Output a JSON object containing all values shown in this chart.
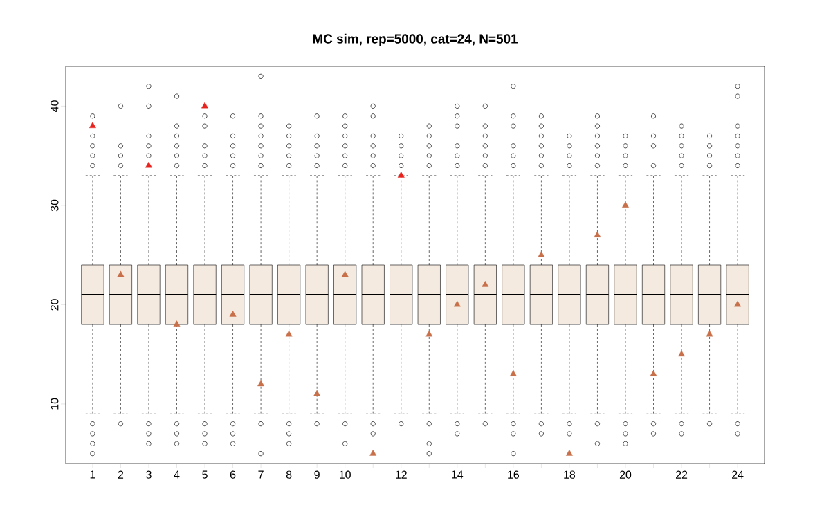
{
  "chart_data": {
    "type": "box",
    "title": "MC sim, rep=5000, cat=24, N=501",
    "categories": [
      "1",
      "2",
      "3",
      "4",
      "5",
      "6",
      "7",
      "8",
      "9",
      "10",
      null,
      "12",
      null,
      "14",
      null,
      "16",
      null,
      "18",
      null,
      "20",
      null,
      "22",
      null,
      "24"
    ],
    "color": "#f5eadf",
    "ylim": [
      4,
      44
    ],
    "yticks": [
      10,
      20,
      30,
      40
    ],
    "grid": false,
    "boxes": [
      {
        "low": 9,
        "q1": 18,
        "median": 21,
        "q3": 24,
        "high": 33,
        "outliers": [
          5,
          6,
          7,
          8,
          34,
          35,
          36,
          37,
          39
        ]
      },
      {
        "low": 9,
        "q1": 18,
        "median": 21,
        "q3": 24,
        "high": 33,
        "outliers": [
          8,
          34,
          35,
          36,
          40
        ]
      },
      {
        "low": 9,
        "q1": 18,
        "median": 21,
        "q3": 24,
        "high": 33,
        "outliers": [
          6,
          7,
          8,
          35,
          36,
          37,
          40,
          42
        ]
      },
      {
        "low": 9,
        "q1": 18,
        "median": 21,
        "q3": 24,
        "high": 33,
        "outliers": [
          6,
          7,
          8,
          34,
          35,
          36,
          37,
          38,
          41
        ]
      },
      {
        "low": 9,
        "q1": 18,
        "median": 21,
        "q3": 24,
        "high": 33,
        "outliers": [
          6,
          7,
          8,
          34,
          35,
          36,
          38,
          39
        ]
      },
      {
        "low": 9,
        "q1": 18,
        "median": 21,
        "q3": 24,
        "high": 33,
        "outliers": [
          6,
          7,
          8,
          34,
          35,
          36,
          37,
          39
        ]
      },
      {
        "low": 9,
        "q1": 18,
        "median": 21,
        "q3": 24,
        "high": 33,
        "outliers": [
          5,
          8,
          34,
          35,
          36,
          37,
          38,
          39,
          43
        ]
      },
      {
        "low": 9,
        "q1": 18,
        "median": 21,
        "q3": 24,
        "high": 33,
        "outliers": [
          6,
          7,
          8,
          34,
          35,
          36,
          37,
          38
        ]
      },
      {
        "low": 9,
        "q1": 18,
        "median": 21,
        "q3": 24,
        "high": 33,
        "outliers": [
          8,
          34,
          35,
          36,
          37,
          39
        ]
      },
      {
        "low": 9,
        "q1": 18,
        "median": 21,
        "q3": 24,
        "high": 33,
        "outliers": [
          6,
          8,
          34,
          35,
          36,
          37,
          38,
          39
        ]
      },
      {
        "low": 9,
        "q1": 18,
        "median": 21,
        "q3": 24,
        "high": 33,
        "outliers": [
          7,
          8,
          34,
          35,
          36,
          37,
          39,
          40
        ]
      },
      {
        "low": 9,
        "q1": 18,
        "median": 21,
        "q3": 24,
        "high": 33,
        "outliers": [
          8,
          34,
          35,
          36,
          37
        ]
      },
      {
        "low": 9,
        "q1": 18,
        "median": 21,
        "q3": 24,
        "high": 33,
        "outliers": [
          5,
          6,
          8,
          34,
          35,
          36,
          37,
          38
        ]
      },
      {
        "low": 9,
        "q1": 18,
        "median": 21,
        "q3": 24,
        "high": 33,
        "outliers": [
          7,
          8,
          34,
          35,
          36,
          38,
          39,
          40
        ]
      },
      {
        "low": 9,
        "q1": 18,
        "median": 21,
        "q3": 24,
        "high": 33,
        "outliers": [
          8,
          34,
          35,
          36,
          37,
          38,
          40
        ]
      },
      {
        "low": 9,
        "q1": 18,
        "median": 21,
        "q3": 24,
        "high": 33,
        "outliers": [
          5,
          7,
          8,
          34,
          35,
          36,
          38,
          39,
          42
        ]
      },
      {
        "low": 9,
        "q1": 18,
        "median": 21,
        "q3": 24,
        "high": 33,
        "outliers": [
          7,
          8,
          34,
          35,
          36,
          37,
          38,
          39
        ]
      },
      {
        "low": 9,
        "q1": 18,
        "median": 21,
        "q3": 24,
        "high": 33,
        "outliers": [
          7,
          8,
          34,
          35,
          36,
          37
        ]
      },
      {
        "low": 9,
        "q1": 18,
        "median": 21,
        "q3": 24,
        "high": 33,
        "outliers": [
          6,
          8,
          34,
          35,
          36,
          37,
          38,
          39
        ]
      },
      {
        "low": 9,
        "q1": 18,
        "median": 21,
        "q3": 24,
        "high": 33,
        "outliers": [
          6,
          7,
          8,
          34,
          35,
          36,
          37
        ]
      },
      {
        "low": 9,
        "q1": 18,
        "median": 21,
        "q3": 24,
        "high": 33,
        "outliers": [
          7,
          8,
          34,
          36,
          37,
          39
        ]
      },
      {
        "low": 9,
        "q1": 18,
        "median": 21,
        "q3": 24,
        "high": 33,
        "outliers": [
          7,
          8,
          34,
          35,
          36,
          37,
          38
        ]
      },
      {
        "low": 9,
        "q1": 18,
        "median": 21,
        "q3": 24,
        "high": 33,
        "outliers": [
          8,
          34,
          35,
          36,
          37
        ]
      },
      {
        "low": 9,
        "q1": 18,
        "median": 21,
        "q3": 24,
        "high": 33,
        "outliers": [
          7,
          8,
          34,
          35,
          36,
          37,
          38,
          41,
          42
        ]
      }
    ],
    "series": [
      {
        "type": "scatter",
        "marker": "triangle",
        "values": [
          38,
          23,
          34,
          18,
          40,
          19,
          12,
          17,
          11,
          23,
          5,
          33,
          17,
          20,
          22,
          13,
          25,
          5,
          27,
          30,
          13,
          15,
          17,
          20
        ],
        "colors": [
          "#e8231e",
          "#c8704a",
          "#e8231e",
          "#c8704a",
          "#e8231e",
          "#c8704a",
          "#c8704a",
          "#c8704a",
          "#c8704a",
          "#c8704a",
          "#c8704a",
          "#e8231e",
          "#c8704a",
          "#c8704a",
          "#c8704a",
          "#c8704a",
          "#c8704a",
          "#c8704a",
          "#c8704a",
          "#c8704a",
          "#c8704a",
          "#c8704a",
          "#c8704a",
          "#c8704a"
        ]
      }
    ]
  }
}
